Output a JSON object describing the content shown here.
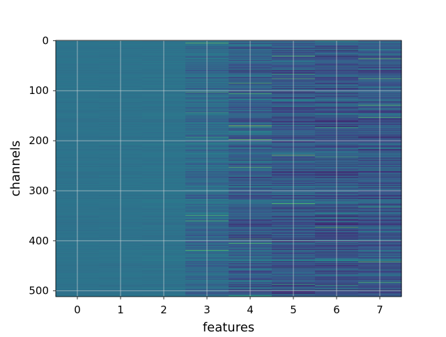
{
  "chart_data": {
    "type": "heatmap",
    "title": "",
    "xlabel": "features",
    "ylabel": "channels",
    "x_ticks": [
      0,
      1,
      2,
      3,
      4,
      5,
      6,
      7
    ],
    "y_ticks": [
      0,
      100,
      200,
      300,
      400,
      500
    ],
    "x_tick_labels": [
      "0",
      "1",
      "2",
      "3",
      "4",
      "5",
      "6",
      "7"
    ],
    "y_tick_labels": [
      "0",
      "100",
      "200",
      "300",
      "400",
      "500"
    ],
    "xlim": [
      -0.5,
      7.5
    ],
    "ylim": [
      511.5,
      -0.5
    ],
    "n_columns": 8,
    "n_rows": 512,
    "y_axis_inverted": true,
    "grid": true,
    "colormap": "viridis",
    "colormap_stops": [
      "#440154",
      "#3b528b",
      "#21918c",
      "#5ec962",
      "#fde725"
    ],
    "grid_color": "#dcdcdc",
    "column_mean_intensity": [
      0.38,
      0.38,
      0.38,
      0.34,
      0.3,
      0.28,
      0.27,
      0.28
    ],
    "column_variability": [
      0.012,
      0.015,
      0.02,
      0.07,
      0.1,
      0.11,
      0.11,
      0.1
    ]
  }
}
